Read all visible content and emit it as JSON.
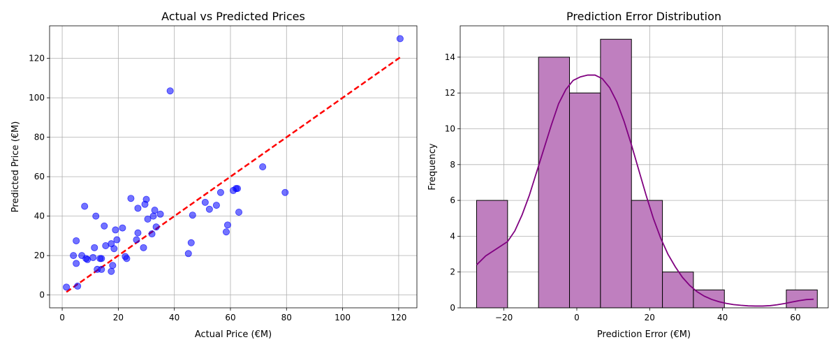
{
  "chart_data": [
    {
      "type": "scatter",
      "title": "Actual vs Predicted Prices",
      "xlabel": "Actual Price (€M)",
      "ylabel": "Predicted Price (€M)",
      "xlim": [
        -4.5,
        126.5
      ],
      "ylim": [
        -6.5,
        136.5
      ],
      "xticks": [
        0,
        20,
        40,
        60,
        80,
        100,
        120
      ],
      "yticks": [
        0,
        20,
        40,
        60,
        80,
        100,
        120
      ],
      "grid": true,
      "point_color": "#0000ff",
      "reference_line": {
        "color": "#ff0000",
        "style": "dashed",
        "points": [
          [
            1.5,
            1.5
          ],
          [
            120.5,
            120.5
          ]
        ]
      },
      "points": [
        [
          1.5,
          4
        ],
        [
          5.5,
          4.5
        ],
        [
          4,
          20
        ],
        [
          5,
          27.5
        ],
        [
          5,
          16
        ],
        [
          7,
          20
        ],
        [
          8,
          45
        ],
        [
          8.5,
          18.5
        ],
        [
          9,
          18
        ],
        [
          11,
          19
        ],
        [
          11.5,
          24
        ],
        [
          12,
          40
        ],
        [
          12.5,
          13
        ],
        [
          13.5,
          18.5
        ],
        [
          14,
          18.5
        ],
        [
          14,
          13
        ],
        [
          15,
          35
        ],
        [
          15.5,
          25
        ],
        [
          17.5,
          12
        ],
        [
          17.5,
          26
        ],
        [
          18,
          15
        ],
        [
          18.5,
          23.5
        ],
        [
          19,
          33
        ],
        [
          19.5,
          28
        ],
        [
          21.5,
          34
        ],
        [
          22.5,
          19.5
        ],
        [
          23,
          18.5
        ],
        [
          24.5,
          49
        ],
        [
          26.5,
          28
        ],
        [
          27,
          31.5
        ],
        [
          27,
          44
        ],
        [
          29,
          24
        ],
        [
          29.5,
          46
        ],
        [
          30,
          48.5
        ],
        [
          30.5,
          38.5
        ],
        [
          32,
          31
        ],
        [
          32.5,
          40
        ],
        [
          33,
          43
        ],
        [
          33.5,
          34.5
        ],
        [
          35,
          41
        ],
        [
          38.5,
          103.5
        ],
        [
          45,
          21
        ],
        [
          46,
          26.5
        ],
        [
          46.5,
          40.5
        ],
        [
          51,
          47
        ],
        [
          52.5,
          43.5
        ],
        [
          55,
          45.5
        ],
        [
          56.5,
          52
        ],
        [
          58.5,
          32
        ],
        [
          59,
          35.5
        ],
        [
          61,
          53
        ],
        [
          62,
          54
        ],
        [
          62.5,
          54
        ],
        [
          63,
          42
        ],
        [
          71.5,
          65
        ],
        [
          79.5,
          52
        ],
        [
          120.5,
          130
        ]
      ]
    },
    {
      "type": "histogram",
      "title": "Prediction Error Distribution",
      "xlabel": "Prediction Error (€M)",
      "ylabel": "Frequency",
      "xlim": [
        -32,
        69
      ],
      "ylim": [
        0,
        15.75
      ],
      "xticks": [
        -20,
        0,
        20,
        40,
        60
      ],
      "yticks": [
        0,
        2,
        4,
        6,
        8,
        10,
        12,
        14
      ],
      "grid": true,
      "bar_color": "#bf7fbf",
      "kde_color": "#800080",
      "bin_edges": [
        -27.5,
        -19.0,
        -10.5,
        -2.0,
        6.5,
        15.0,
        23.5,
        32.0,
        40.5,
        49.0,
        57.5,
        66.0
      ],
      "counts": [
        6,
        0,
        14,
        12,
        15,
        6,
        2,
        1,
        0,
        0,
        1
      ],
      "kde": [
        [
          -27.5,
          2.4
        ],
        [
          -25,
          2.9
        ],
        [
          -22,
          3.3
        ],
        [
          -19,
          3.7
        ],
        [
          -17,
          4.3
        ],
        [
          -15,
          5.2
        ],
        [
          -13,
          6.3
        ],
        [
          -11,
          7.6
        ],
        [
          -9,
          8.9
        ],
        [
          -7,
          10.2
        ],
        [
          -5,
          11.4
        ],
        [
          -3,
          12.2
        ],
        [
          -1,
          12.7
        ],
        [
          1,
          12.9
        ],
        [
          3,
          13.0
        ],
        [
          5,
          13.0
        ],
        [
          7,
          12.8
        ],
        [
          9,
          12.3
        ],
        [
          11,
          11.5
        ],
        [
          13,
          10.4
        ],
        [
          15,
          9.1
        ],
        [
          17,
          7.7
        ],
        [
          19,
          6.3
        ],
        [
          21,
          5.0
        ],
        [
          23,
          3.9
        ],
        [
          25,
          3.0
        ],
        [
          27,
          2.3
        ],
        [
          29,
          1.7
        ],
        [
          31,
          1.25
        ],
        [
          33,
          0.9
        ],
        [
          35,
          0.65
        ],
        [
          37,
          0.47
        ],
        [
          39,
          0.34
        ],
        [
          41,
          0.25
        ],
        [
          43,
          0.18
        ],
        [
          45,
          0.14
        ],
        [
          47,
          0.11
        ],
        [
          49,
          0.1
        ],
        [
          51,
          0.1
        ],
        [
          53,
          0.12
        ],
        [
          55,
          0.17
        ],
        [
          57,
          0.24
        ],
        [
          59,
          0.32
        ],
        [
          61,
          0.4
        ],
        [
          63,
          0.46
        ],
        [
          65,
          0.48
        ]
      ]
    }
  ]
}
